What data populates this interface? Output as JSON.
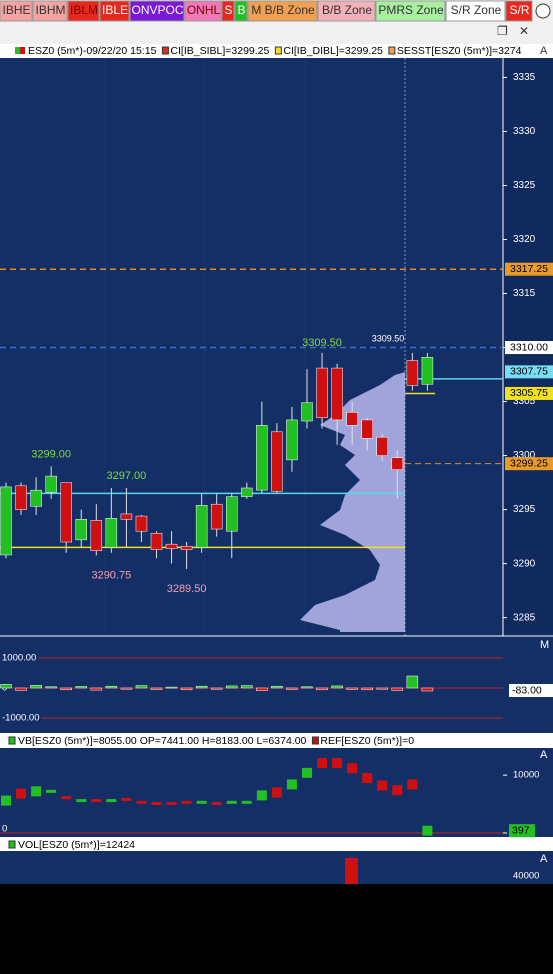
{
  "toolbar": {
    "buttons": [
      {
        "label": "IBHE",
        "color": "#f4a3a3",
        "text_color": "#333333"
      },
      {
        "label": "IBHM",
        "color": "#f4a3a3",
        "text_color": "#333333"
      },
      {
        "label": "IBLM",
        "color": "#e8281e",
        "text_color": "#7a0000"
      },
      {
        "label": "IBLE",
        "color": "#e8281e",
        "text_color": "#ffffff"
      },
      {
        "label": "ONVPOC",
        "color": "#7a1ad8",
        "text_color": "#ffffff"
      },
      {
        "label": "ONHL",
        "color": "#f07ab8",
        "text_color": "#7a0000"
      },
      {
        "label": "S",
        "color": "#e8281e",
        "text_color": "#ffffff"
      },
      {
        "label": "B",
        "color": "#22c022",
        "text_color": "#ffffff"
      },
      {
        "label": "M B/B Zone",
        "color": "#f0a050",
        "text_color": "#333333"
      },
      {
        "label": "B/B Zone",
        "color": "#f4b0b8",
        "text_color": "#333333"
      },
      {
        "label": "PMRS Zone",
        "color": "#a8f0a0",
        "text_color": "#333333"
      },
      {
        "label": "S/R Zone",
        "color": "#ffffff",
        "text_color": "#333333"
      },
      {
        "label": "S/R",
        "color": "#e8281e",
        "text_color": "#ffffff"
      }
    ]
  },
  "header": {
    "symbol": "ESZ0 (5m*)-09/22/20 15:15",
    "studies": [
      "CI[IB_SIBL]=3299.25",
      "CI[IB_DIBL]=3299.25",
      "SESST[ESZ0 (5m*)]=3274"
    ],
    "study_colors": [
      "#e8281e",
      "#f0e020",
      "#f0a050"
    ]
  },
  "chart_data": {
    "type": "candlestick",
    "ylim": [
      3283.3,
      3336.8
    ],
    "yticks": [
      3285,
      3290,
      3295,
      3300,
      3305,
      3310,
      3315,
      3320,
      3325,
      3330,
      3335
    ],
    "up_color": "#22c022",
    "down_color": "#d01010",
    "open": [
      3290.8,
      3297.2,
      3295.3,
      3296.6,
      3297.5,
      3292.2,
      3294,
      3291.5,
      3294.6,
      3294.4,
      3292.8,
      3291.8,
      3291.6,
      3291.5,
      3295.5,
      3293,
      3296.2,
      3296.8,
      3302.2,
      3299.6,
      3303.2,
      3308.1,
      3308.1,
      3304,
      3303.3,
      3301.7,
      3299.8,
      3308.8,
      3306.6
    ],
    "high": [
      3297.5,
      3297.5,
      3298,
      3299,
      3297.5,
      3295,
      3295.5,
      3297,
      3297,
      3294.5,
      3293,
      3293,
      3292,
      3296.5,
      3296.5,
      3296.5,
      3297.5,
      3305,
      3303,
      3304.5,
      3308,
      3309.5,
      3308.5,
      3305,
      3303.5,
      3302,
      3300.5,
      3309.5,
      3309.5
    ],
    "low": [
      3290.5,
      3294.5,
      3294.5,
      3296,
      3291,
      3291.5,
      3290.75,
      3291,
      3291.5,
      3292,
      3290.5,
      3290,
      3289.5,
      3291,
      3292.5,
      3290.5,
      3296,
      3296.5,
      3296.5,
      3298.5,
      3302.5,
      3302.5,
      3301,
      3301,
      3300.5,
      3299.5,
      3296,
      3306,
      3306
    ],
    "close": [
      3297.1,
      3295,
      3296.8,
      3298.1,
      3292,
      3294.1,
      3291.2,
      3294.2,
      3294.1,
      3293,
      3291.3,
      3291.4,
      3291.3,
      3295.4,
      3293.2,
      3296.2,
      3297,
      3302.8,
      3296.7,
      3303.3,
      3304.9,
      3303.5,
      3303.3,
      3302.8,
      3301.6,
      3300,
      3298.7,
      3306.5,
      3309.1
    ],
    "levels": [
      {
        "price": 3317.25,
        "color": "#e08a2a",
        "dash": true
      },
      {
        "price": 3310,
        "color": "#3a6ad0",
        "dash": true
      },
      {
        "price": 3296.5,
        "color": "#5ad8f0",
        "dash": false
      },
      {
        "price": 3291.5,
        "color": "#f0e020",
        "dash": false
      }
    ],
    "price_tags": [
      {
        "value": 3317.25,
        "label": "3317.25",
        "color": "#e89a2a"
      },
      {
        "value": 3310,
        "label": "3310.00",
        "color": "#ffffff"
      },
      {
        "value": 3307.75,
        "label": "3307.75",
        "color": "#7adcf0"
      },
      {
        "value": 3305.75,
        "label": "3305.75",
        "color": "#f0e020"
      },
      {
        "value": 3299.25,
        "label": "3299.25",
        "color": "#e89a2a"
      }
    ],
    "annotations": [
      {
        "value": 3309.5,
        "label": "3309.50",
        "color": "#7ddc3e"
      },
      {
        "value": 3309.5,
        "label": "3309.50",
        "color": "#ffffff"
      },
      {
        "value": 3299,
        "label": "3299.00",
        "color": "#7ddc3e"
      },
      {
        "value": 3297,
        "label": "3297.00",
        "color": "#7ddc3e"
      },
      {
        "value": 3290.75,
        "label": "3290.75",
        "color": "#f0a0b0"
      },
      {
        "value": 3289.5,
        "label": "3289.50",
        "color": "#f0a0b0"
      }
    ]
  },
  "delta_panel": {
    "ylim": [
      -1500,
      1700
    ],
    "yticks": [
      {
        "value": 1000,
        "label": "1000.00"
      },
      0,
      {
        "value": -1000,
        "label": "-1000.00"
      }
    ],
    "tag": {
      "value": -83,
      "label": "-83.00"
    },
    "scale_label": "M",
    "values": [
      120,
      -80,
      90,
      40,
      -60,
      50,
      -70,
      60,
      -40,
      80,
      -50,
      30,
      -60,
      60,
      -40,
      70,
      80,
      -90,
      60,
      -50,
      40,
      -60,
      70,
      -50,
      -60,
      -40,
      -80,
      400,
      -100
    ]
  },
  "vb_panel": {
    "header": [
      "VB[ESZ0 (5m*)]=8055.00 OP=7441.00 H=8183.00 L=6374.00",
      "REF[ESZ0 (5m*)]=0"
    ],
    "ylim": [
      -700,
      14700
    ],
    "yticks": [
      0,
      10000
    ],
    "tag": 397,
    "scale_label": "A",
    "values": [
      5600,
      6800,
      7200,
      7200,
      6100,
      5600,
      5600,
      5600,
      5800,
      5300,
      5100,
      5100,
      5300,
      5300,
      5100,
      5300,
      5300,
      6500,
      7000,
      8400,
      10400,
      12100,
      12100,
      11200,
      9500,
      8200,
      7400,
      8400,
      397
    ]
  },
  "vol_panel": {
    "header": "VOL[ESZ0 (5m*)]=12424",
    "axis_label": "40000",
    "scale_label": "A"
  }
}
